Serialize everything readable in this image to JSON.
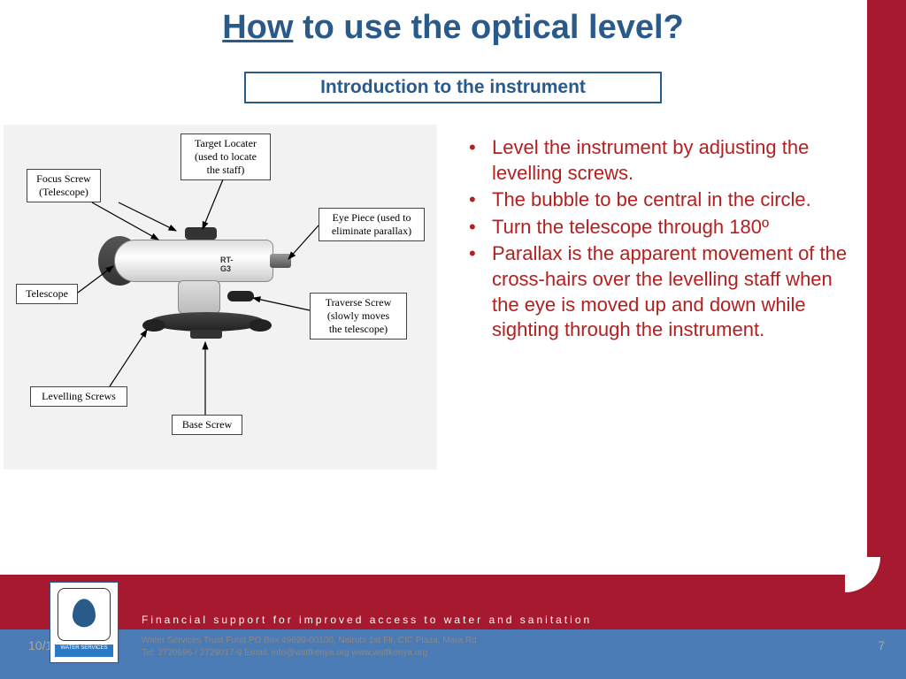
{
  "title_how": "How",
  "title_rest": " to use the optical level?",
  "subtitle": "Introduction to the instrument",
  "diagram": {
    "background": "#f2f2f2",
    "labels": {
      "target_locater": "Target Locater\n(used to locate\nthe staff)",
      "focus_screw": "Focus Screw\n(Telescope)",
      "eye_piece": "Eye Piece (used to\neliminate parallax)",
      "telescope": "Telescope",
      "traverse_screw": "Traverse Screw\n(slowly moves\nthe telescope)",
      "levelling_screws": "Levelling Screws",
      "base_screw": "Base Screw",
      "instrument_marking": "RT-G3"
    }
  },
  "bullets": [
    "Level the instrument by adjusting the levelling screws.",
    "The bubble to be central in the circle.",
    "Turn the telescope through 180º",
    "Parallax is the apparent movement of the cross-hairs over the levelling staff when the eye is moved up and down while sighting through the instrument."
  ],
  "footer": {
    "tagline": "Financial support for improved access to water and sanitation",
    "line1": "Water Services Trust Fund    PO Box 49699-00100, Nairobi    1st Flr, CIC Plaza, Mara Rd",
    "line2": "Tel: 2720696 / 2729017-9    Email: info@wstfkenya.org    www.wstfkenya.org",
    "logo_text": "WATER SERVICES"
  },
  "date": "10/1/20",
  "page_number": "7",
  "colors": {
    "title": "#2a5a8a",
    "bullet_text": "#b32020",
    "sidebar": "#a6192e",
    "footer_blue": "#4a7bb5"
  }
}
